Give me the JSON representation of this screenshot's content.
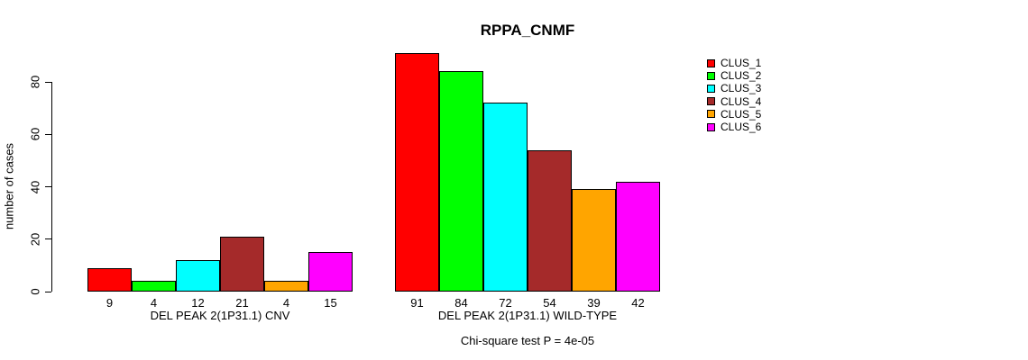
{
  "chart_data": {
    "type": "bar",
    "title": "RPPA_CNMF",
    "ylabel": "number of cases",
    "ylim": [
      0,
      80
    ],
    "yticks": [
      0,
      20,
      40,
      60,
      80
    ],
    "grid": false,
    "legend_position": "top-right-inside",
    "categories": [
      "DEL PEAK 2(1P31.1) CNV",
      "DEL PEAK 2(1P31.1) WILD-TYPE"
    ],
    "groups": [
      {
        "label": "DEL PEAK 2(1P31.1) CNV",
        "values": [
          9,
          4,
          12,
          21,
          4,
          15
        ]
      },
      {
        "label": "DEL PEAK 2(1P31.1) WILD-TYPE",
        "values": [
          91,
          84,
          72,
          54,
          39,
          42
        ]
      }
    ],
    "series": [
      {
        "name": "CLUS_1",
        "color": "#FF0000",
        "values": [
          9,
          91
        ]
      },
      {
        "name": "CLUS_2",
        "color": "#00FF00",
        "values": [
          4,
          84
        ]
      },
      {
        "name": "CLUS_3",
        "color": "#00FFFF",
        "values": [
          12,
          72
        ]
      },
      {
        "name": "CLUS_4",
        "color": "#A52A2A",
        "values": [
          21,
          54
        ]
      },
      {
        "name": "CLUS_5",
        "color": "#FFA500",
        "values": [
          4,
          39
        ]
      },
      {
        "name": "CLUS_6",
        "color": "#FF00FF",
        "values": [
          15,
          42
        ]
      }
    ],
    "footnote": "Chi-square test P = 4e-05"
  }
}
